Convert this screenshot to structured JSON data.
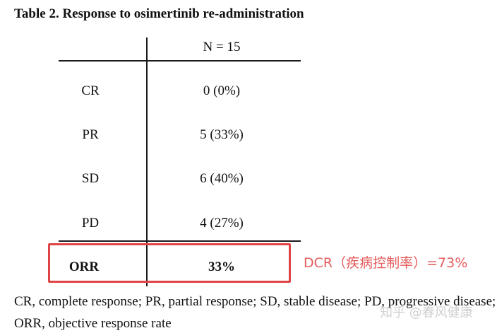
{
  "table": {
    "title": "Table 2. Response to osimertinib re-administration",
    "column_header": "N = 15",
    "rows": [
      {
        "label": "CR",
        "value": "0 (0%)"
      },
      {
        "label": "PR",
        "value": "5 (33%)"
      },
      {
        "label": "SD",
        "value": "6 (40%)"
      },
      {
        "label": "PD",
        "value": "4 (27%)"
      },
      {
        "label": "ORR",
        "value": "33%"
      }
    ],
    "footnote": "CR, complete response; PR, partial response; SD, stable disease; PD, progressive disease; ORR, objective response rate"
  },
  "annotation": {
    "text": "DCR（疾病控制率）=73%",
    "color": "#e55b5b"
  },
  "watermark": {
    "text": "知乎 @春风健康"
  }
}
